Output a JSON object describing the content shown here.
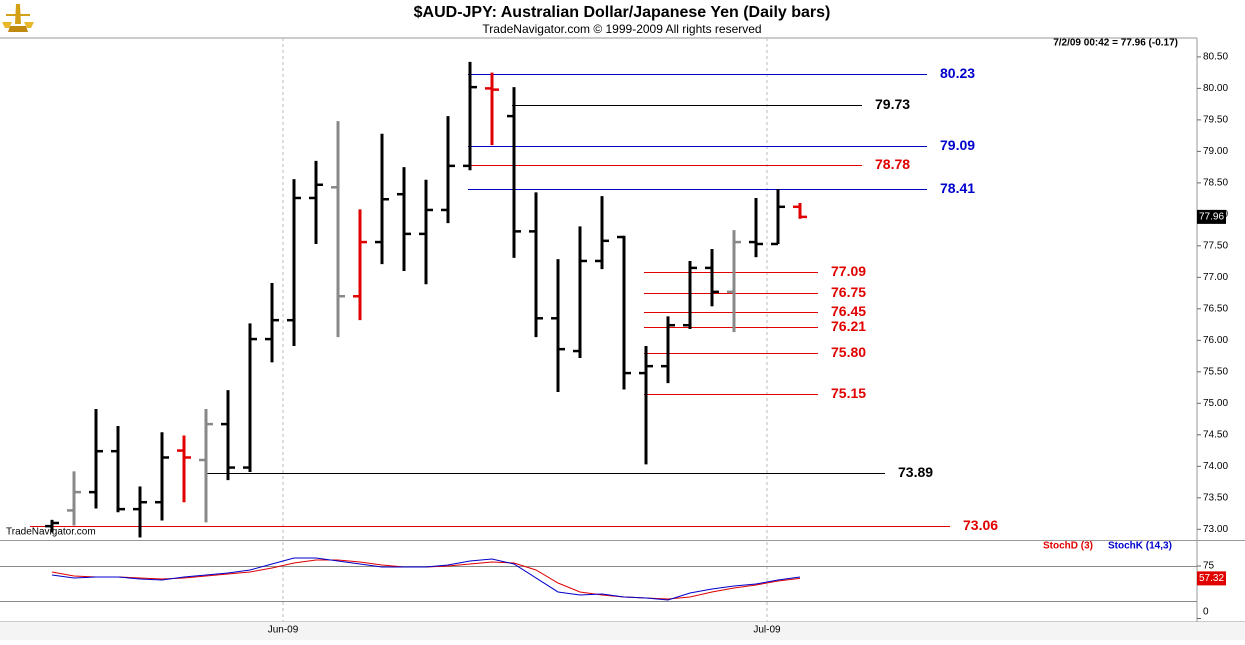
{
  "chart_data": [
    {
      "type": "ohlc",
      "title": "$AUD-JPY:  Australian Dollar/Japanese Yen  (Daily bars)",
      "subtitle": "TradeNavigator.com © 1999-2009 All rights reserved",
      "info": "7/2/09 00:42 = 77.96 (-0.17)",
      "watermark": "TradeNavigator.com",
      "categories": [
        null,
        null,
        null,
        null,
        null,
        null,
        null,
        null,
        null,
        null,
        null,
        "Jun-09",
        null,
        null,
        null,
        null,
        null,
        null,
        null,
        null,
        null,
        null,
        null,
        null,
        null,
        null,
        null,
        null,
        null,
        null,
        null,
        null,
        null,
        "Jul-09",
        null
      ],
      "open": [
        73.05,
        73.3,
        73.59,
        74.24,
        73.32,
        73.43,
        74.25,
        74.1,
        74.67,
        73.98,
        76.02,
        76.32,
        78.26,
        78.43,
        76.7,
        77.56,
        78.32,
        77.69,
        78.07,
        78.77,
        80.0,
        79.56,
        77.73,
        76.35,
        75.83,
        77.26,
        77.64,
        75.48,
        75.59,
        76.24,
        77.15,
        76.77,
        77.56,
        77.53,
        78.12
      ],
      "high": [
        73.15,
        73.92,
        74.91,
        74.64,
        73.68,
        74.54,
        74.49,
        74.91,
        75.21,
        76.27,
        76.91,
        78.56,
        78.85,
        79.48,
        78.08,
        79.28,
        78.75,
        78.55,
        79.56,
        80.42,
        80.25,
        80.02,
        78.35,
        77.29,
        77.81,
        78.29,
        77.66,
        75.91,
        76.38,
        77.26,
        77.45,
        77.75,
        78.26,
        78.4,
        78.18
      ],
      "low": [
        72.95,
        73.06,
        73.33,
        73.27,
        72.87,
        73.14,
        73.43,
        73.11,
        73.78,
        73.91,
        75.65,
        75.91,
        77.53,
        76.05,
        76.32,
        77.21,
        77.1,
        76.89,
        77.86,
        78.7,
        79.1,
        77.31,
        76.05,
        75.18,
        75.72,
        77.13,
        75.22,
        74.03,
        75.32,
        76.18,
        76.54,
        76.13,
        77.32,
        77.53,
        77.93
      ],
      "close": [
        73.1,
        73.59,
        74.24,
        73.32,
        73.43,
        74.14,
        74.14,
        74.67,
        73.98,
        76.02,
        76.32,
        78.26,
        78.47,
        76.7,
        77.56,
        78.24,
        77.69,
        78.07,
        78.77,
        80.02,
        79.98,
        77.73,
        76.35,
        75.86,
        77.26,
        77.58,
        75.48,
        75.59,
        76.24,
        77.15,
        76.77,
        77.56,
        77.53,
        78.12,
        77.96
      ],
      "bar_colors": [
        "#000000",
        "#888888",
        "#000000",
        "#000000",
        "#000000",
        "#000000",
        "#e00000",
        "#888888",
        "#000000",
        "#000000",
        "#000000",
        "#000000",
        "#000000",
        "#888888",
        "#e00000",
        "#000000",
        "#000000",
        "#000000",
        "#000000",
        "#000000",
        "#e00000",
        "#000000",
        "#000000",
        "#000000",
        "#000000",
        "#000000",
        "#000000",
        "#000000",
        "#000000",
        "#000000",
        "#000000",
        "#888888",
        "#000000",
        "#000000",
        "#e00000"
      ],
      "ylim": [
        72.83,
        80.8
      ],
      "yticks": [
        {
          "value": 73,
          "label": "73.00"
        },
        {
          "value": 73.5,
          "label": "73.50"
        },
        {
          "value": 74,
          "label": "74.00"
        },
        {
          "value": 74.5,
          "label": "74.50"
        },
        {
          "value": 75,
          "label": "75.00"
        },
        {
          "value": 75.5,
          "label": "75.50"
        },
        {
          "value": 76,
          "label": "76.00"
        },
        {
          "value": 76.5,
          "label": "76.50"
        },
        {
          "value": 77,
          "label": "77.00"
        },
        {
          "value": 77.5,
          "label": "77.50"
        },
        {
          "value": 78,
          "label": "78.00"
        },
        {
          "value": 78.5,
          "label": "78.50"
        },
        {
          "value": 79,
          "label": "79.00"
        },
        {
          "value": 79.5,
          "label": "79.50"
        },
        {
          "value": 80,
          "label": "80.00"
        },
        {
          "value": 80.5,
          "label": "80.50"
        }
      ],
      "levels": {
        "values": [
          80.23,
          79.73,
          79.09,
          78.78,
          78.41,
          77.09,
          76.75,
          76.45,
          76.21,
          75.8,
          75.15,
          73.89,
          73.06
        ],
        "value_labels": [
          "80.23",
          "79.73",
          "79.09",
          "78.78",
          "78.41",
          "77.09",
          "76.75",
          "76.45",
          "76.21",
          "75.80",
          "75.15",
          "73.89",
          "73.06"
        ],
        "colors": [
          "#0000cc",
          "#000000",
          "#0000cc",
          "#e00000",
          "#0000cc",
          "#e00000",
          "#e00000",
          "#e00000",
          "#e00000",
          "#e00000",
          "#e00000",
          "#000000",
          "#e00000"
        ]
      }
    },
    {
      "type": "line",
      "series": [
        {
          "name": "StochD (3)",
          "color": "#e00000",
          "values": [
            66.4,
            60.7,
            59.3,
            59.3,
            57.9,
            56.4,
            57.9,
            60.7,
            63.6,
            66.4,
            72.1,
            79.3,
            83.6,
            83.6,
            80.7,
            76.4,
            73.6,
            73.6,
            75.0,
            77.9,
            80.7,
            79.3,
            69.3,
            50.7,
            37.9,
            33.6,
            30.7,
            29.3,
            27.9,
            30.7,
            37.9,
            43.6,
            47.9,
            53.6,
            57.32
          ]
        },
        {
          "name": "StochK (14,3)",
          "color": "#0000cc",
          "values": [
            62.1,
            57.9,
            59.3,
            59.3,
            56.4,
            55,
            59.3,
            62.1,
            65,
            69.3,
            77.9,
            86.4,
            86.4,
            82.1,
            77.9,
            73.6,
            73.6,
            73.6,
            76.4,
            82.1,
            85,
            77.9,
            57.9,
            37.9,
            33.6,
            35,
            30.7,
            29.3,
            26.4,
            36.4,
            42.1,
            46.4,
            49.3,
            55,
            59.3
          ]
        }
      ],
      "ylim": [
        -5,
        110.7
      ],
      "yticks": [
        0,
        75
      ],
      "reference_lines": [
        25,
        75
      ]
    }
  ]
}
